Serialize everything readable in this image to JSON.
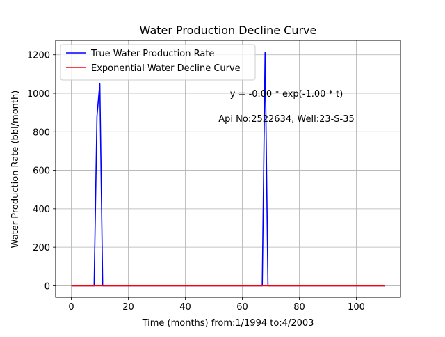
{
  "chart_data": {
    "type": "line",
    "title": "Water Production Decline Curve",
    "xlabel": "Time (months) from:1/1994 to:4/2003",
    "ylabel": "Water Production Rate (bbl/month)",
    "xlim": [
      -5.5,
      115.5
    ],
    "ylim": [
      -60,
      1275
    ],
    "xticks": [
      0,
      20,
      40,
      60,
      80,
      100
    ],
    "yticks": [
      0,
      200,
      400,
      600,
      800,
      1000,
      1200
    ],
    "grid": true,
    "legend_position": "top-left",
    "series": [
      {
        "name": "True Water Production Rate",
        "color": "#0000ff",
        "x": [
          0,
          8,
          9,
          10,
          11,
          67,
          68,
          69,
          110
        ],
        "y": [
          0,
          0,
          880,
          1052,
          0,
          0,
          1212,
          0,
          0
        ]
      },
      {
        "name": "Exponential Water Decline Curve",
        "color": "#ff0000",
        "x": [
          0,
          110
        ],
        "y": [
          0,
          0
        ]
      }
    ],
    "annotations": [
      {
        "text": "y = -0.00 * exp(-1.00 * t)",
        "x": 75.5,
        "y": 1000
      },
      {
        "text": "Api No:2522634, Well:23-S-35",
        "x": 75.5,
        "y": 870
      }
    ]
  }
}
